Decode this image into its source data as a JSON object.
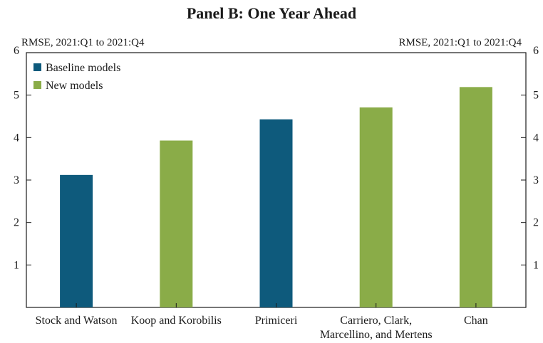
{
  "panel_title": "Panel B: One Year Ahead",
  "left_axis_caption": "RMSE, 2021:Q1 to 2021:Q4",
  "right_axis_caption": "RMSE, 2021:Q1 to 2021:Q4",
  "colors": {
    "baseline": "#0e5a7c",
    "new": "#8aac48",
    "axis": "#1a1a1a"
  },
  "chart_data": {
    "type": "bar",
    "title": "Panel B: One Year Ahead",
    "ylabel": "RMSE, 2021:Q1 to 2021:Q4",
    "ylim": [
      0,
      6
    ],
    "yticks": [
      1,
      2,
      3,
      4,
      5
    ],
    "yticks_top_label": 6,
    "categories": [
      [
        "Stock and Watson"
      ],
      [
        "Koop and Korobilis"
      ],
      [
        "Primiceri"
      ],
      [
        "Carriero, Clark,",
        "Marcellino, and Mertens"
      ],
      [
        "Chan"
      ]
    ],
    "values": [
      3.12,
      3.93,
      4.43,
      4.71,
      5.19
    ],
    "groups": [
      "baseline",
      "new",
      "baseline",
      "new",
      "new"
    ],
    "legend": [
      {
        "key": "baseline",
        "label": "Baseline models"
      },
      {
        "key": "new",
        "label": "New models"
      }
    ],
    "legend_position": "top-left",
    "grid": false
  }
}
